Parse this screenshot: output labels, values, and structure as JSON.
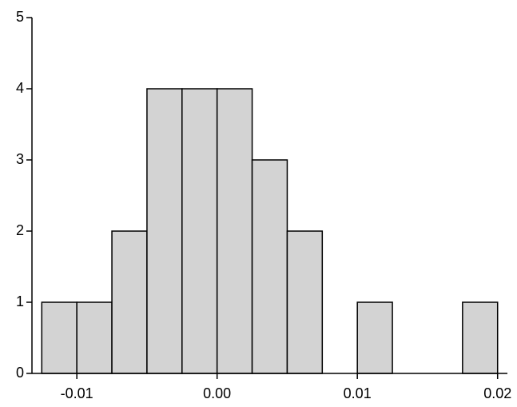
{
  "chart_data": {
    "type": "histogram",
    "bins": [
      -0.0125,
      -0.01,
      -0.0075,
      -0.005,
      -0.0025,
      0,
      0.0025,
      0.005,
      0.0075,
      0.01,
      0.0125,
      0.015,
      0.0175,
      0.02
    ],
    "counts": [
      1,
      1,
      2,
      4,
      4,
      4,
      3,
      2,
      0,
      1,
      0,
      0,
      1
    ],
    "color": "#d3d3d3",
    "xlim": [
      -0.0132,
      0.0207
    ],
    "xticks": [
      -0.01,
      {
        "value": 0,
        "label": "0.00"
      },
      0.01,
      0.02
    ],
    "ylim": [
      0,
      5
    ],
    "yticks": [
      0,
      1,
      2,
      3,
      4,
      5
    ]
  }
}
